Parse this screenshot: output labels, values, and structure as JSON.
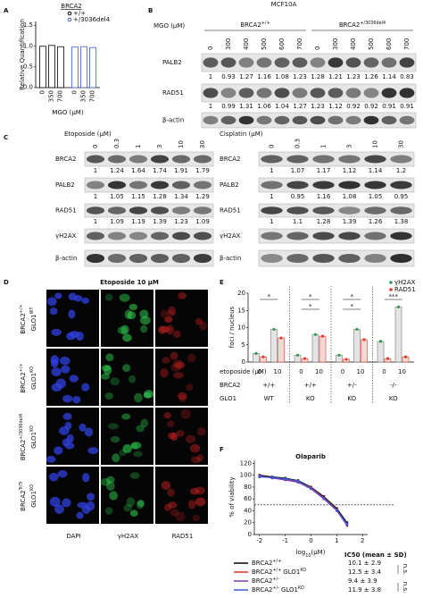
{
  "panel_labels": [
    "A",
    "B",
    "C",
    "D",
    "E",
    "F"
  ],
  "a": {
    "type": "bar",
    "title": "BRCA2",
    "y_label": "Relative Quantification",
    "x_label": "MGO (μM)",
    "categories": [
      "0",
      "350",
      "700"
    ],
    "ylim": [
      0,
      1.6
    ],
    "yticks": [
      {
        "value": 0,
        "label": "0.0"
      },
      {
        "value": 0.5,
        "label": "0.5"
      },
      {
        "value": 1,
        "label": "1.0"
      },
      {
        "value": 1.5,
        "label": "1.5"
      }
    ],
    "series": [
      {
        "name": "+/+",
        "color": "#000000",
        "values": [
          1.0,
          1.02,
          0.99
        ]
      },
      {
        "name": "+/3036del4",
        "color": "#3a5bd9",
        "values": [
          0.98,
          0.99,
          0.97
        ]
      }
    ]
  },
  "b": {
    "cell_line": "MCF10A",
    "treatment": "MGO (μM)",
    "groups": [
      {
        "gene": "BRCA2",
        "geno": "+/+",
        "lanes": [
          "0",
          "300",
          "400",
          "500",
          "600",
          "700"
        ]
      },
      {
        "gene": "BRCA2",
        "geno": "+/3036del4",
        "lanes": [
          "0",
          "300",
          "400",
          "500",
          "600",
          "700"
        ]
      }
    ],
    "blots": [
      {
        "name": "PALB2",
        "values": [
          1,
          0.93,
          1.27,
          1.16,
          1.08,
          1.23,
          1.28,
          1.21,
          1.23,
          1.26,
          1.14,
          0.83
        ]
      },
      {
        "name": "RAD51",
        "values": [
          1,
          0.99,
          1.31,
          1.06,
          1.04,
          1.27,
          1.23,
          1.12,
          0.92,
          0.92,
          0.91,
          0.91
        ]
      },
      {
        "name": "β-actin"
      }
    ]
  },
  "c": {
    "sides": [
      {
        "treatment": "Etoposide (μM)",
        "lanes": [
          "0",
          "0.3",
          "1",
          "3",
          "10",
          "30"
        ],
        "blots": [
          {
            "name": "BRCA2",
            "values": [
              1,
              1.24,
              1.64,
              1.74,
              1.91,
              1.79
            ]
          },
          {
            "name": "PALB2",
            "values": [
              1,
              1.05,
              1.15,
              1.28,
              1.34,
              1.29
            ]
          },
          {
            "name": "RAD51",
            "values": [
              1,
              1.09,
              1.19,
              1.39,
              1.23,
              1.09
            ]
          },
          {
            "name": "γH2AX"
          },
          {
            "name": "β-actin"
          }
        ]
      },
      {
        "treatment": "Cisplatin (μM)",
        "lanes": [
          "0",
          "0.3",
          "1",
          "3",
          "10",
          "30"
        ],
        "blots": [
          {
            "name": "BRCA2",
            "values": [
              1,
              1.07,
              1.17,
              1.12,
              1.14,
              1.2
            ]
          },
          {
            "name": "PALB2",
            "values": [
              1,
              0.95,
              1.16,
              1.08,
              1.05,
              0.95
            ]
          },
          {
            "name": "RAD51",
            "values": [
              1,
              1.1,
              1.28,
              1.39,
              1.26,
              1.38
            ]
          },
          {
            "name": "γH2AX"
          },
          {
            "name": "β-actin"
          }
        ]
      }
    ]
  },
  "d": {
    "title": "Etoposide 10 μM",
    "columns": [
      "DAPI",
      "γH2AX",
      "RAD51"
    ],
    "rows": [
      {
        "gene": "BRCA2",
        "geno": "+/+",
        "glo": "GLO1",
        "glo_geno": "WT"
      },
      {
        "gene": "BRCA2",
        "geno": "+/+",
        "glo": "GLO1",
        "glo_geno": "KO"
      },
      {
        "gene": "BRCA2",
        "geno": "+/3036del4",
        "glo": "GLO1",
        "glo_geno": "KO"
      },
      {
        "gene": "BRCA2",
        "geno": "Tr/Tr",
        "glo": "GLO1",
        "glo_geno": "KO"
      }
    ]
  },
  "e": {
    "type": "bar",
    "y_label": "foci / nucleus",
    "ylim": [
      0,
      20
    ],
    "yticks": [
      0,
      5,
      10,
      15,
      20
    ],
    "series": [
      {
        "name": "γH2AX",
        "color": "#2e9e4f",
        "values": [
          2.5,
          9.5,
          2,
          8,
          2,
          9.5,
          6,
          16
        ]
      },
      {
        "name": "RAD51",
        "color": "#e03b2c",
        "values": [
          1.5,
          7,
          1,
          7.5,
          0.8,
          6.5,
          1,
          1.5
        ]
      }
    ],
    "row_labels": [
      "etoposide (μM)",
      "BRCA2",
      "GLO1"
    ],
    "etoposide": [
      "0",
      "10",
      "0",
      "10",
      "0",
      "10",
      "0",
      "10"
    ],
    "brca2": [
      "+/+",
      "+/+",
      "+/-",
      "-/-"
    ],
    "glo1": [
      "WT",
      "KO",
      "KO",
      "KO"
    ],
    "significance": [
      [
        "*"
      ],
      [
        "*",
        "*"
      ],
      [
        "*",
        "*"
      ],
      [
        "***"
      ]
    ]
  },
  "f": {
    "type": "line",
    "title": "Olaparib",
    "y_label": "% of viability",
    "x_label": {
      "base": "log",
      "sub": "10",
      "rest": "(μM)"
    },
    "xlim": [
      -2.2,
      2.2
    ],
    "xticks": [
      -2,
      -1,
      0,
      1,
      2
    ],
    "ylim": [
      0,
      125
    ],
    "yticks": [
      0,
      20,
      40,
      60,
      80,
      100,
      120
    ],
    "threshold": 50,
    "x": [
      -2,
      -1.5,
      -1,
      -0.5,
      0,
      0.5,
      1,
      1.4
    ],
    "ic50_header": "IC50 (mean ± SD)",
    "ns": [
      "n.s.",
      "n.s."
    ],
    "series": [
      {
        "name": "BRCA2",
        "sup": "+/+",
        "color": "#000000",
        "values": [
          100,
          97,
          95,
          91,
          80,
          64,
          44,
          20
        ],
        "ic50": "10.1 ± 2.9"
      },
      {
        "name": "BRCA2",
        "sup": "+/+",
        "glo": "GLO1",
        "glo_sup": "KO",
        "color": "#e0302a",
        "values": [
          98,
          96,
          93,
          89,
          79,
          62,
          42,
          17
        ],
        "ic50": "12.5 ± 3.4"
      },
      {
        "name": "BRCA2",
        "sup": "+/-",
        "color": "#7a3aa8",
        "values": [
          99,
          95,
          92,
          88,
          77,
          60,
          40,
          15
        ],
        "ic50": "9.4 ± 3.9"
      },
      {
        "name": "BRCA2",
        "sup": "+/-",
        "glo": "GLO1",
        "glo_sup": "KO",
        "color": "#3a5bd9",
        "values": [
          97,
          96,
          94,
          90,
          78,
          61,
          41,
          18
        ],
        "ic50": "11.9 ± 3.8"
      }
    ]
  }
}
